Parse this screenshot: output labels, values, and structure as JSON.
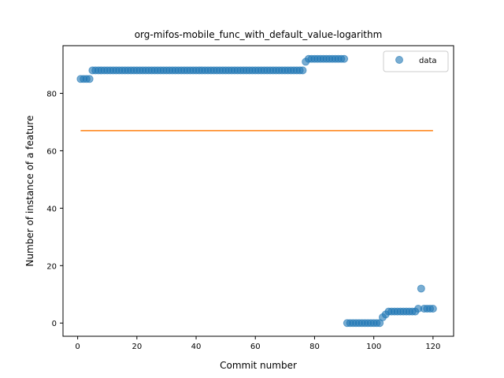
{
  "chart_data": {
    "type": "scatter",
    "title": "org-mifos-mobile_func_with_default_value-logarithm",
    "xlabel": "Commit number",
    "ylabel": "Number of instance of a feature",
    "xlim": [
      -4.95,
      126.95
    ],
    "ylim": [
      -4.6,
      96.6
    ],
    "xticks": [
      0,
      20,
      40,
      60,
      80,
      100,
      120
    ],
    "yticks": [
      0,
      20,
      40,
      60,
      80
    ],
    "grid": false,
    "legend_position": "top-right",
    "series": [
      {
        "name": "data",
        "kind": "scatter",
        "color": "#1f77b4",
        "x": [
          1,
          2,
          3,
          4,
          5,
          6,
          7,
          8,
          9,
          10,
          11,
          12,
          13,
          14,
          15,
          16,
          17,
          18,
          19,
          20,
          21,
          22,
          23,
          24,
          25,
          26,
          27,
          28,
          29,
          30,
          31,
          32,
          33,
          34,
          35,
          36,
          37,
          38,
          39,
          40,
          41,
          42,
          43,
          44,
          45,
          46,
          47,
          48,
          49,
          50,
          51,
          52,
          53,
          54,
          55,
          56,
          57,
          58,
          59,
          60,
          61,
          62,
          63,
          64,
          65,
          66,
          67,
          68,
          69,
          70,
          71,
          72,
          73,
          74,
          75,
          76,
          77,
          78,
          79,
          80,
          81,
          82,
          83,
          84,
          85,
          86,
          87,
          88,
          89,
          90,
          91,
          92,
          93,
          94,
          95,
          96,
          97,
          98,
          99,
          100,
          101,
          102,
          103,
          104,
          105,
          106,
          107,
          108,
          109,
          110,
          111,
          112,
          113,
          114,
          115,
          116,
          117,
          118,
          119,
          120
        ],
        "y": [
          85,
          85,
          85,
          85,
          88,
          88,
          88,
          88,
          88,
          88,
          88,
          88,
          88,
          88,
          88,
          88,
          88,
          88,
          88,
          88,
          88,
          88,
          88,
          88,
          88,
          88,
          88,
          88,
          88,
          88,
          88,
          88,
          88,
          88,
          88,
          88,
          88,
          88,
          88,
          88,
          88,
          88,
          88,
          88,
          88,
          88,
          88,
          88,
          88,
          88,
          88,
          88,
          88,
          88,
          88,
          88,
          88,
          88,
          88,
          88,
          88,
          88,
          88,
          88,
          88,
          88,
          88,
          88,
          88,
          88,
          88,
          88,
          88,
          88,
          88,
          88,
          91,
          92,
          92,
          92,
          92,
          92,
          92,
          92,
          92,
          92,
          92,
          92,
          92,
          92,
          0,
          0,
          0,
          0,
          0,
          0,
          0,
          0,
          0,
          0,
          0,
          0,
          2,
          3,
          4,
          4,
          4,
          4,
          4,
          4,
          4,
          4,
          4,
          4,
          5,
          12,
          5,
          5,
          5,
          5
        ]
      },
      {
        "name": "",
        "kind": "line",
        "color": "#ff7f0e",
        "x": [
          1,
          120
        ],
        "y": [
          67,
          67
        ]
      }
    ]
  }
}
